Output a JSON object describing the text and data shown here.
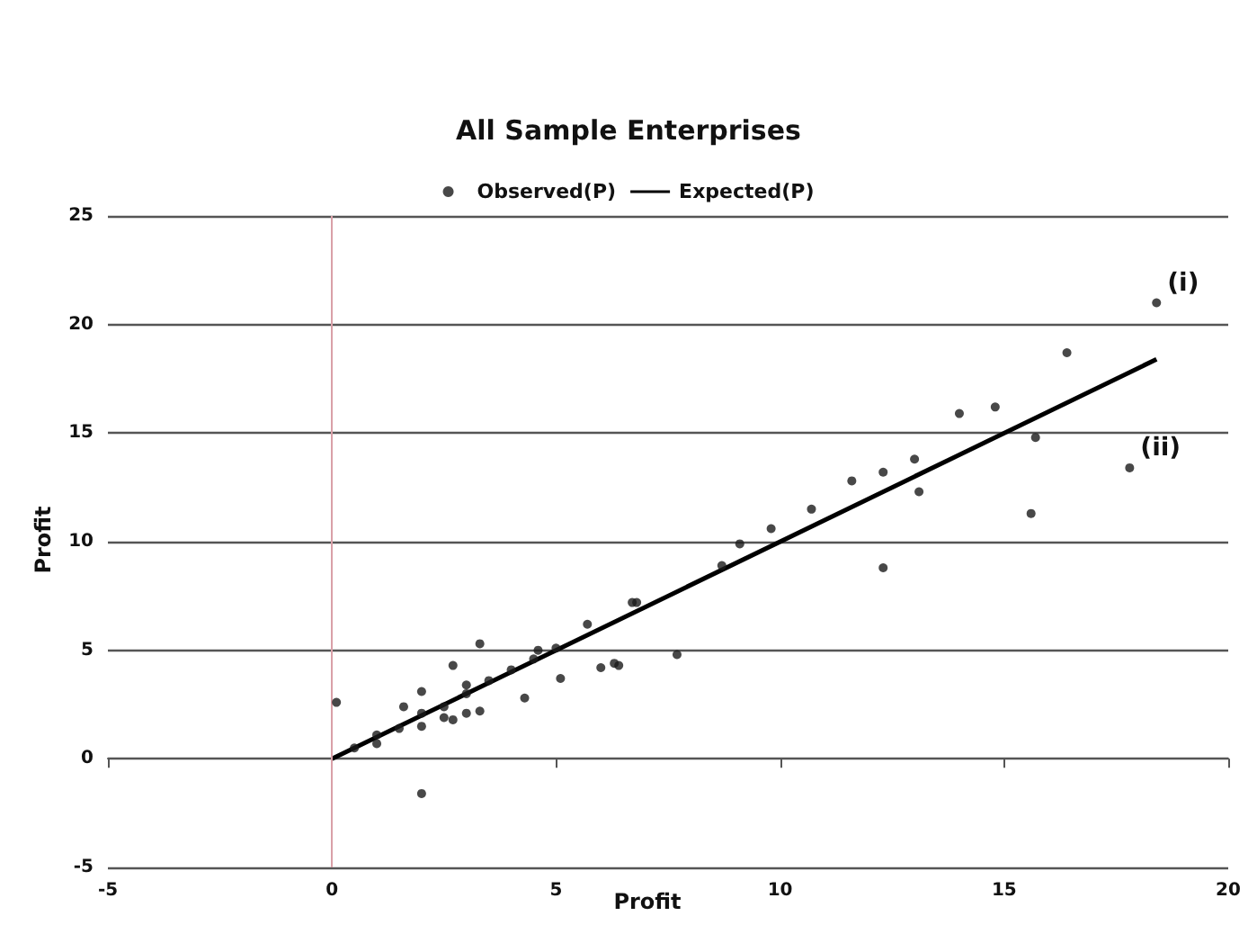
{
  "chart_data": {
    "type": "scatter",
    "title": "All Sample Enterprises",
    "xlabel": "Profit",
    "ylabel": "Profit",
    "xlim": [
      -5,
      20
    ],
    "ylim": [
      -5,
      25
    ],
    "xticks": [
      -5,
      0,
      5,
      10,
      15,
      20
    ],
    "yticks": [
      -5,
      0,
      5,
      10,
      15,
      20,
      25
    ],
    "grid": "y",
    "legend": "top",
    "marker": "circle",
    "ref_lines": [
      {
        "axis": "x",
        "value": 0,
        "color": "#d9a0a8"
      }
    ],
    "annotations": [
      {
        "text": "(i)",
        "x": 18.4,
        "y": 21.0
      },
      {
        "text": "(ii)",
        "x": 17.8,
        "y": 13.4
      }
    ],
    "series": [
      {
        "name": "Observed(P)",
        "color": "#1a1a1a",
        "x": [
          18.4,
          16.4,
          14.0,
          14.8,
          15.7,
          17.8,
          15.6,
          13.0,
          13.1,
          12.3,
          11.6,
          12.3,
          10.7,
          9.8,
          9.1,
          8.7,
          6.8,
          6.4,
          7.7,
          3.3,
          2.7,
          2.0,
          1.6,
          3.0,
          5.7,
          6.7,
          5.1,
          6.0,
          6.3,
          4.3,
          4.6,
          0.1,
          2.7,
          3.0,
          3.3,
          0.5,
          1.0,
          1.5,
          2.0,
          2.5,
          3.0,
          3.5,
          4.0,
          4.5,
          5.0,
          1.0,
          2.0,
          2.5,
          2.0
        ],
        "values": [
          21.0,
          18.7,
          15.9,
          16.2,
          14.8,
          13.4,
          11.3,
          13.8,
          12.3,
          13.2,
          12.8,
          8.8,
          11.5,
          10.6,
          9.9,
          8.9,
          7.2,
          4.3,
          4.8,
          5.3,
          4.3,
          3.1,
          2.4,
          3.4,
          6.2,
          7.2,
          3.7,
          4.2,
          4.4,
          2.8,
          5.0,
          2.6,
          1.8,
          2.1,
          2.2,
          0.5,
          1.1,
          1.4,
          2.1,
          2.4,
          3.0,
          3.6,
          4.1,
          4.6,
          5.1,
          0.7,
          1.5,
          1.9,
          -1.6
        ]
      },
      {
        "name": "Expected(P)",
        "type": "line",
        "color": "#000000",
        "marker": "none",
        "line_style": "solid",
        "x": [
          0,
          18.4
        ],
        "values": [
          0,
          18.4
        ]
      }
    ]
  }
}
